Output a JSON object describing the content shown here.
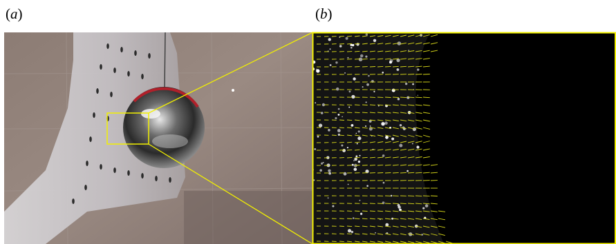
{
  "panels": [
    {
      "id": "a",
      "label_open": "(",
      "label_letter": "a",
      "label_close": ")"
    },
    {
      "id": "b",
      "label_open": "(",
      "label_letter": "b",
      "label_close": ")"
    }
  ],
  "colors": {
    "zoom_box": "#f2f000",
    "piv_arrow": "#d8d81a",
    "panel_b_background": "#050505",
    "sphere_band": "#b0202a"
  },
  "description_icons": [
    "sphere-photo",
    "piv-vector-field"
  ]
}
